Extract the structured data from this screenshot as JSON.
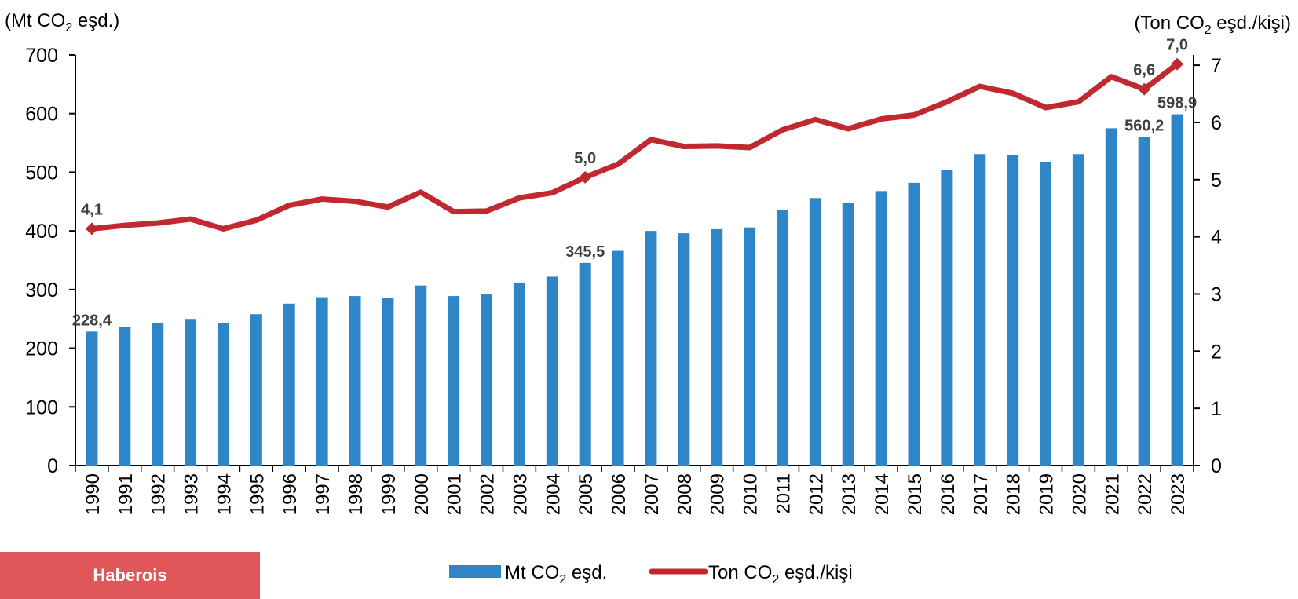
{
  "chart_data": {
    "type": "bar+line",
    "left_axis_label": "(Mt CO2 eşd.)",
    "right_axis_label": "(Ton CO2 eşd./kişi)",
    "categories": [
      "1990",
      "1991",
      "1992",
      "1993",
      "1994",
      "1995",
      "1996",
      "1997",
      "1998",
      "1999",
      "2000",
      "2001",
      "2002",
      "2003",
      "2004",
      "2005",
      "2006",
      "2007",
      "2008",
      "2009",
      "2010",
      "2011",
      "2012",
      "2013",
      "2014",
      "2015",
      "2016",
      "2017",
      "2018",
      "2019",
      "2020",
      "2021",
      "2022",
      "2023"
    ],
    "left_ylim": [
      0,
      700
    ],
    "left_ticks": [
      "0",
      "100",
      "200",
      "300",
      "400",
      "500",
      "600",
      "700"
    ],
    "right_ylim": [
      0,
      7.18
    ],
    "right_ticks": [
      "0",
      "1",
      "2",
      "3",
      "4",
      "5",
      "6",
      "7"
    ],
    "series": [
      {
        "name": "Mt CO2 eşd.",
        "type": "bar",
        "axis": "left",
        "color": "#2e86c9",
        "values": [
          228.4,
          236,
          243,
          250,
          243,
          258,
          276,
          287,
          289,
          286,
          307,
          289,
          293,
          312,
          322,
          345.5,
          366,
          400,
          396,
          403,
          406,
          436,
          456,
          448,
          468,
          482,
          504,
          531,
          530,
          518,
          531,
          575,
          560.2,
          598.9
        ],
        "labels": {
          "0": "228,4",
          "15": "345,5",
          "32": "560,2",
          "33": "598,9"
        }
      },
      {
        "name": "Ton CO2 eşd./kişi",
        "type": "line",
        "axis": "right",
        "color": "#c0292f",
        "values": [
          4.14,
          4.2,
          4.24,
          4.31,
          4.14,
          4.29,
          4.55,
          4.66,
          4.62,
          4.52,
          4.78,
          4.44,
          4.45,
          4.68,
          4.77,
          5.04,
          5.27,
          5.7,
          5.58,
          5.59,
          5.56,
          5.87,
          6.05,
          5.89,
          6.06,
          6.13,
          6.36,
          6.63,
          6.51,
          6.26,
          6.36,
          6.8,
          6.58,
          7.02
        ],
        "labels": {
          "0": "4,1",
          "15": "5,0",
          "32": "6,6",
          "33": "7,0"
        }
      }
    ],
    "legend": [
      "Mt CO2 eşd.",
      "Ton CO2 eşd./kişi"
    ],
    "legend_position": "bottom"
  },
  "watermark": "Haberois"
}
